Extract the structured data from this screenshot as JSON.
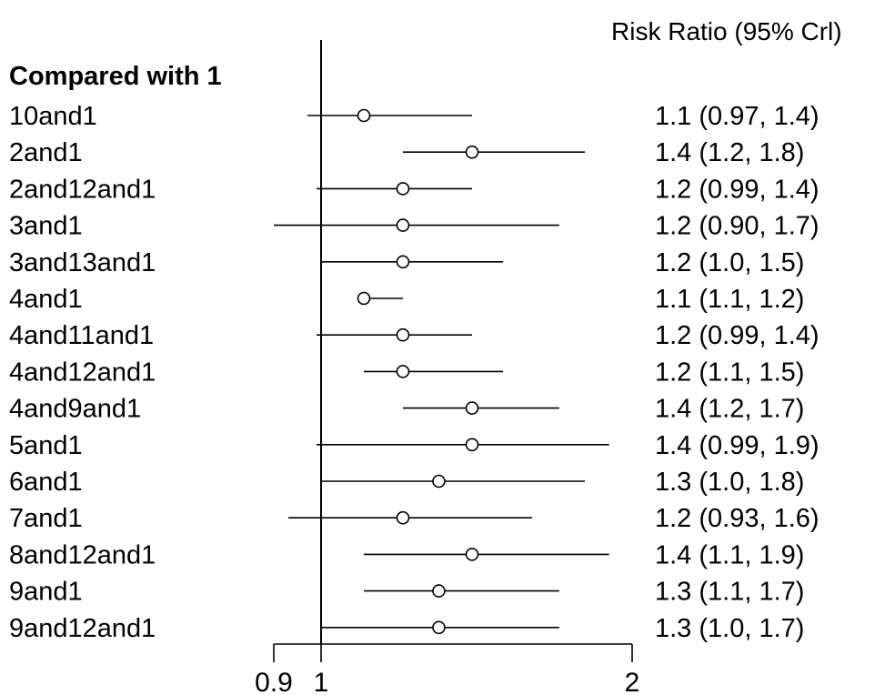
{
  "chart_data": {
    "type": "forest",
    "header": "Risk Ratio (95% Crl)",
    "group_label": "Compared with 1",
    "x_scale": "log",
    "reference_line": 1,
    "xlim": [
      0.9,
      2
    ],
    "x_ticks": [
      0.9,
      1,
      2
    ],
    "x_tick_labels": [
      "0.9",
      "1",
      "2"
    ],
    "rows": [
      {
        "label": "10and1",
        "estimate": 1.1,
        "lower": 0.97,
        "upper": 1.4,
        "text": "1.1 (0.97, 1.4)"
      },
      {
        "label": "2and1",
        "estimate": 1.4,
        "lower": 1.2,
        "upper": 1.8,
        "text": "1.4 (1.2, 1.8)"
      },
      {
        "label": "2and12and1",
        "estimate": 1.2,
        "lower": 0.99,
        "upper": 1.4,
        "text": "1.2 (0.99, 1.4)"
      },
      {
        "label": "3and1",
        "estimate": 1.2,
        "lower": 0.9,
        "upper": 1.7,
        "text": "1.2 (0.90, 1.7)"
      },
      {
        "label": "3and13and1",
        "estimate": 1.2,
        "lower": 1.0,
        "upper": 1.5,
        "text": "1.2 (1.0, 1.5)"
      },
      {
        "label": "4and1",
        "estimate": 1.1,
        "lower": 1.1,
        "upper": 1.2,
        "text": "1.1 (1.1, 1.2)"
      },
      {
        "label": "4and11and1",
        "estimate": 1.2,
        "lower": 0.99,
        "upper": 1.4,
        "text": "1.2 (0.99, 1.4)"
      },
      {
        "label": "4and12and1",
        "estimate": 1.2,
        "lower": 1.1,
        "upper": 1.5,
        "text": "1.2 (1.1, 1.5)"
      },
      {
        "label": "4and9and1",
        "estimate": 1.4,
        "lower": 1.2,
        "upper": 1.7,
        "text": "1.4 (1.2, 1.7)"
      },
      {
        "label": "5and1",
        "estimate": 1.4,
        "lower": 0.99,
        "upper": 1.9,
        "text": "1.4 (0.99, 1.9)"
      },
      {
        "label": "6and1",
        "estimate": 1.3,
        "lower": 1.0,
        "upper": 1.8,
        "text": "1.3 (1.0, 1.8)"
      },
      {
        "label": "7and1",
        "estimate": 1.2,
        "lower": 0.93,
        "upper": 1.6,
        "text": "1.2 (0.93, 1.6)"
      },
      {
        "label": "8and12and1",
        "estimate": 1.4,
        "lower": 1.1,
        "upper": 1.9,
        "text": "1.4 (1.1, 1.9)"
      },
      {
        "label": "9and1",
        "estimate": 1.3,
        "lower": 1.1,
        "upper": 1.7,
        "text": "1.3 (1.1, 1.7)"
      },
      {
        "label": "9and12and1",
        "estimate": 1.3,
        "lower": 1.0,
        "upper": 1.7,
        "text": "1.3 (1.0, 1.7)"
      }
    ]
  }
}
